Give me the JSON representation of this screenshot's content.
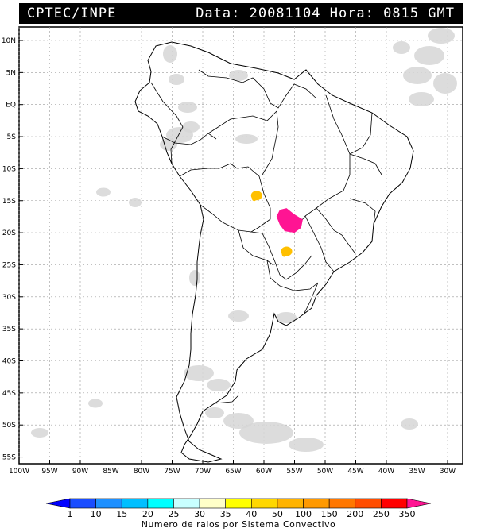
{
  "header": {
    "agency": "CPTEC/INPE",
    "date_time": "Data: 20081104 Hora: 0815 GMT"
  },
  "map": {
    "lat_labels": [
      "10N",
      "5N",
      "EQ",
      "5S",
      "10S",
      "15S",
      "20S",
      "25S",
      "30S",
      "35S",
      "40S",
      "45S",
      "50S",
      "55S"
    ],
    "lon_labels": [
      "100W",
      "95W",
      "90W",
      "85W",
      "80W",
      "75W",
      "70W",
      "65W",
      "60W",
      "55W",
      "50W",
      "45W",
      "40W",
      "35W",
      "30W"
    ]
  },
  "legend": {
    "ticks": [
      "1",
      "10",
      "15",
      "20",
      "25",
      "30",
      "35",
      "40",
      "50",
      "100",
      "150",
      "200",
      "250",
      "350"
    ],
    "colors": [
      "#0000ff",
      "#1a4dff",
      "#1e90ff",
      "#00bfff",
      "#00ffff",
      "#c8ffff",
      "#ffffc8",
      "#ffff00",
      "#ffd700",
      "#ffb300",
      "#ff9900",
      "#ff7700",
      "#ff4d00",
      "#ff0000",
      "#ff1493"
    ],
    "caption": "Numero de raios por Sistema Convectivo"
  },
  "convective_systems": [
    {
      "lon": -61.2,
      "lat": -14.2,
      "color": "#ffc000"
    },
    {
      "lon": -55.8,
      "lat": -18.7,
      "color": "#ff1493"
    },
    {
      "lon": -56.3,
      "lat": -22.9,
      "color": "#ffc000"
    }
  ]
}
